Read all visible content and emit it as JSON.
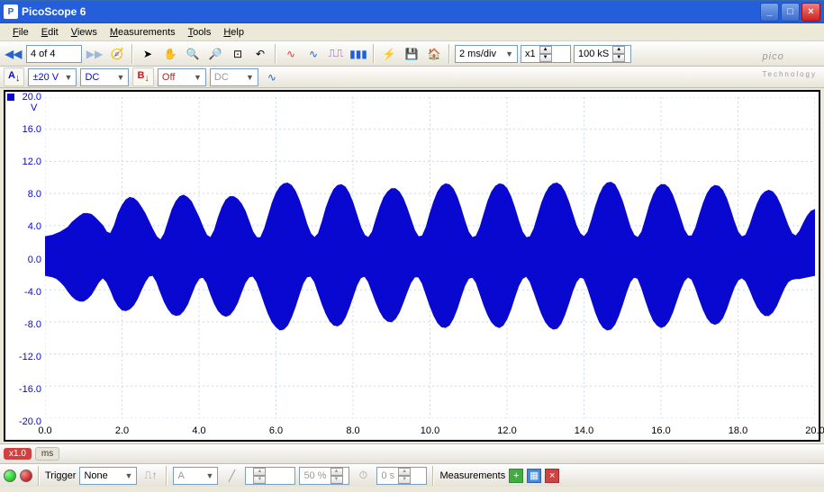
{
  "window": {
    "title": "PicoScope 6"
  },
  "menu": {
    "items": [
      "File",
      "Edit",
      "Views",
      "Measurements",
      "Tools",
      "Help"
    ]
  },
  "toolbar": {
    "page_of": "4  of 4",
    "timebase": "2 ms/div",
    "zoom": "x1",
    "samples": "100 kS"
  },
  "channels": {
    "a": {
      "label": "A",
      "range": "±20 V",
      "coupling": "DC",
      "color": "#0808d0"
    },
    "b": {
      "label": "B",
      "range": "Off",
      "coupling": "DC",
      "color": "#c02020"
    }
  },
  "logo": {
    "brand": "pico",
    "sub": "Technology"
  },
  "chart": {
    "y_unit": "V",
    "y_color": "#0808d0",
    "ylim": [
      -20,
      20
    ],
    "yticks": [
      20.0,
      16.0,
      12.0,
      8.0,
      4.0,
      0.0,
      -4.0,
      -8.0,
      -12.0,
      -16.0,
      -20.0
    ],
    "xlim": [
      0,
      20
    ],
    "xticks": [
      0.0,
      2.0,
      4.0,
      6.0,
      8.0,
      10.0,
      12.0,
      14.0,
      16.0,
      18.0,
      20.0
    ],
    "x_unit": "ms",
    "grid_color": "#c8d8e8",
    "background": "#ffffff",
    "trace_color": "#0808d0",
    "envelope": {
      "x_step_ms": 0.1,
      "carrier_amp_v": 9.0,
      "modulation_hz_approx": 700,
      "upper": [
        2.6,
        2.7,
        2.8,
        3.0,
        3.2,
        3.5,
        3.8,
        4.4,
        4.8,
        5.2,
        5.5,
        5.5,
        5.4,
        5.0,
        4.5,
        4.0,
        3.2,
        3.0,
        4.0,
        5.5,
        6.5,
        7.2,
        7.5,
        7.4,
        7.0,
        6.3,
        5.5,
        4.5,
        3.5,
        2.6,
        2.2,
        3.0,
        4.5,
        6.0,
        7.0,
        7.6,
        7.8,
        7.5,
        7.0,
        6.0,
        5.0,
        3.8,
        2.8,
        2.5,
        3.4,
        5.0,
        6.3,
        7.2,
        7.6,
        7.6,
        7.3,
        6.7,
        5.8,
        4.5,
        3.2,
        2.5,
        2.5,
        3.6,
        5.2,
        6.8,
        8.0,
        8.8,
        9.2,
        9.3,
        9.0,
        8.3,
        7.2,
        5.8,
        4.2,
        3.0,
        2.5,
        3.0,
        4.5,
        6.2,
        7.5,
        8.5,
        9.0,
        9.1,
        8.8,
        8.0,
        6.8,
        5.3,
        3.8,
        2.8,
        2.5,
        3.2,
        4.8,
        6.3,
        7.5,
        8.2,
        8.6,
        8.6,
        8.2,
        7.4,
        6.2,
        4.8,
        3.4,
        2.6,
        2.7,
        3.8,
        5.5,
        7.0,
        8.2,
        8.9,
        9.2,
        9.1,
        8.6,
        7.6,
        6.2,
        4.6,
        3.2,
        2.5,
        2.7,
        3.8,
        5.4,
        7.0,
        8.2,
        8.9,
        9.2,
        9.1,
        8.6,
        7.6,
        6.2,
        4.6,
        3.2,
        2.5,
        2.6,
        3.6,
        5.2,
        6.8,
        8.0,
        8.8,
        9.2,
        9.3,
        9.0,
        8.2,
        7.0,
        5.5,
        4.0,
        3.0,
        2.6,
        3.2,
        4.7,
        6.4,
        7.8,
        8.8,
        9.3,
        9.4,
        9.1,
        8.2,
        7.0,
        5.4,
        3.8,
        2.8,
        2.5,
        3.2,
        4.8,
        6.5,
        7.8,
        8.7,
        9.1,
        9.1,
        8.7,
        7.8,
        6.5,
        5.0,
        3.5,
        2.7,
        2.7,
        3.7,
        5.3,
        6.8,
        8.0,
        8.7,
        9.0,
        8.9,
        8.4,
        7.4,
        6.0,
        4.5,
        3.2,
        2.6,
        2.8,
        3.9,
        5.4,
        6.7,
        7.7,
        8.2,
        8.4,
        8.2,
        7.6,
        6.6,
        5.3,
        4.0,
        3.0,
        2.7,
        3.3,
        4.3,
        5.2,
        5.8,
        6.0
      ],
      "lower": [
        -2.2,
        -2.3,
        -2.4,
        -2.6,
        -3.0,
        -3.5,
        -4.2,
        -4.8,
        -5.2,
        -5.4,
        -5.4,
        -5.1,
        -4.6,
        -3.8,
        -3.0,
        -2.5,
        -3.0,
        -4.0,
        -5.2,
        -6.0,
        -6.5,
        -6.6,
        -6.4,
        -5.9,
        -5.1,
        -4.0,
        -3.0,
        -2.3,
        -2.2,
        -3.0,
        -4.3,
        -5.5,
        -6.4,
        -7.0,
        -7.2,
        -7.1,
        -6.6,
        -5.8,
        -4.6,
        -3.4,
        -2.6,
        -2.4,
        -3.1,
        -4.5,
        -5.7,
        -6.6,
        -7.1,
        -7.3,
        -7.1,
        -6.5,
        -5.6,
        -4.3,
        -3.1,
        -2.4,
        -2.3,
        -3.0,
        -4.3,
        -5.7,
        -7.0,
        -8.0,
        -8.6,
        -9.0,
        -8.9,
        -8.4,
        -7.4,
        -6.1,
        -4.6,
        -3.2,
        -2.4,
        -2.3,
        -3.0,
        -4.4,
        -5.8,
        -7.0,
        -7.9,
        -8.4,
        -8.5,
        -8.2,
        -7.4,
        -6.2,
        -4.8,
        -3.4,
        -2.5,
        -2.3,
        -3.0,
        -4.3,
        -5.6,
        -6.7,
        -7.5,
        -7.9,
        -8.0,
        -7.6,
        -6.8,
        -5.6,
        -4.3,
        -3.1,
        -2.4,
        -2.4,
        -3.2,
        -4.6,
        -6.0,
        -7.2,
        -8.1,
        -8.6,
        -8.7,
        -8.4,
        -7.6,
        -6.4,
        -4.9,
        -3.5,
        -2.6,
        -2.4,
        -3.1,
        -4.5,
        -5.9,
        -7.1,
        -8.0,
        -8.5,
        -8.7,
        -8.4,
        -7.6,
        -6.4,
        -4.9,
        -3.5,
        -2.6,
        -2.3,
        -3.0,
        -4.3,
        -5.7,
        -7.0,
        -8.0,
        -8.6,
        -8.9,
        -8.8,
        -8.2,
        -7.1,
        -5.7,
        -4.2,
        -3.0,
        -2.4,
        -2.6,
        -3.8,
        -5.3,
        -6.8,
        -8.0,
        -8.7,
        -9.0,
        -8.9,
        -8.3,
        -7.2,
        -5.8,
        -4.3,
        -3.0,
        -2.4,
        -2.6,
        -3.8,
        -5.3,
        -6.7,
        -7.8,
        -8.4,
        -8.7,
        -8.5,
        -7.9,
        -6.8,
        -5.4,
        -4.0,
        -2.9,
        -2.4,
        -2.7,
        -3.8,
        -5.2,
        -6.5,
        -7.5,
        -8.1,
        -8.3,
        -8.1,
        -7.5,
        -6.4,
        -5.0,
        -3.7,
        -2.8,
        -2.5,
        -2.9,
        -3.9,
        -5.1,
        -6.1,
        -6.8,
        -7.2,
        -7.2,
        -6.8,
        -6.0,
        -4.9,
        -3.8,
        -3.0,
        -2.7,
        -2.6,
        -2.6,
        -2.5,
        -2.4,
        -2.3,
        -2.2
      ]
    }
  },
  "status": {
    "zoom_badge": "x1.0",
    "unit": "ms"
  },
  "trigger": {
    "label": "Trigger",
    "mode": "None",
    "source": "A",
    "level": "",
    "threshold": "50 %",
    "delay": "0 s",
    "measurements_label": "Measurements"
  }
}
